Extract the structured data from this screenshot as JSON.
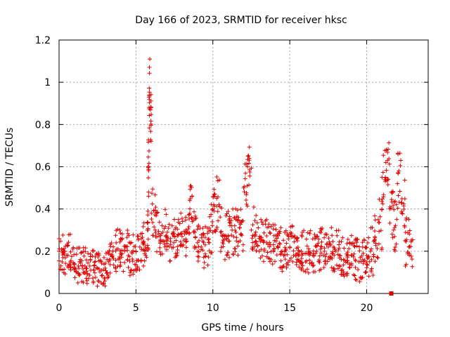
{
  "chart_data": {
    "type": "scatter",
    "title": "Day 166 of 2023, SRMTID for receiver hksc",
    "xlabel": "GPS time / hours",
    "ylabel": "SRMTID / TECUs",
    "xlim": [
      0,
      24
    ],
    "ylim": [
      0,
      1.2
    ],
    "x_ticks": [
      0,
      5,
      10,
      15,
      20
    ],
    "x_tick_labels": [
      "0",
      "5",
      "10",
      "15",
      "20"
    ],
    "y_ticks": [
      0,
      0.2,
      0.4,
      0.6,
      0.8,
      1.0,
      1.2
    ],
    "y_tick_labels": [
      "0",
      "0.2",
      "0.4",
      "0.6",
      "0.8",
      "1",
      "1.2"
    ],
    "grid": true,
    "marker": "plus",
    "color": "#e00000",
    "series": [
      {
        "name": "SRMTID",
        "x": [
          0.0,
          0.25,
          0.5,
          0.75,
          1.0,
          1.25,
          1.5,
          1.75,
          2.0,
          2.25,
          2.5,
          2.75,
          3.0,
          3.25,
          3.5,
          3.75,
          4.0,
          4.25,
          4.5,
          4.75,
          5.0,
          5.25,
          5.5,
          5.75,
          5.8,
          5.85,
          5.9,
          5.95,
          6.0,
          6.25,
          6.5,
          6.75,
          7.0,
          7.25,
          7.5,
          7.75,
          8.0,
          8.25,
          8.5,
          8.75,
          9.0,
          9.25,
          9.5,
          9.75,
          10.0,
          10.25,
          10.5,
          10.75,
          11.0,
          11.25,
          11.5,
          11.75,
          12.0,
          12.25,
          12.5,
          12.75,
          13.0,
          13.25,
          13.5,
          13.75,
          14.0,
          14.25,
          14.5,
          14.75,
          15.0,
          15.25,
          15.5,
          15.75,
          16.0,
          16.25,
          16.5,
          16.75,
          17.0,
          17.25,
          17.5,
          17.75,
          18.0,
          18.25,
          18.5,
          18.75,
          19.0,
          19.25,
          19.5,
          19.75,
          20.0,
          20.25,
          20.5,
          20.75,
          21.0,
          21.25,
          21.5,
          21.75,
          22.0,
          22.25,
          22.5,
          22.75
        ],
        "y": [
          0.2,
          0.17,
          0.18,
          0.15,
          0.14,
          0.13,
          0.13,
          0.12,
          0.13,
          0.11,
          0.12,
          0.11,
          0.12,
          0.16,
          0.2,
          0.21,
          0.19,
          0.2,
          0.18,
          0.19,
          0.2,
          0.22,
          0.24,
          0.3,
          0.6,
          0.93,
          1.11,
          0.87,
          0.38,
          0.3,
          0.27,
          0.29,
          0.25,
          0.26,
          0.27,
          0.28,
          0.27,
          0.3,
          0.44,
          0.29,
          0.24,
          0.22,
          0.23,
          0.31,
          0.4,
          0.45,
          0.29,
          0.27,
          0.27,
          0.3,
          0.29,
          0.31,
          0.5,
          0.6,
          0.3,
          0.28,
          0.26,
          0.25,
          0.24,
          0.23,
          0.25,
          0.22,
          0.2,
          0.21,
          0.22,
          0.18,
          0.19,
          0.2,
          0.19,
          0.2,
          0.18,
          0.2,
          0.21,
          0.2,
          0.22,
          0.19,
          0.2,
          0.18,
          0.16,
          0.17,
          0.18,
          0.16,
          0.15,
          0.16,
          0.18,
          0.2,
          0.25,
          0.35,
          0.55,
          0.62,
          0.4,
          0.3,
          0.52,
          0.43,
          0.25,
          0.22
        ],
        "spread": [
          0.1,
          0.1,
          0.1,
          0.09,
          0.09,
          0.09,
          0.09,
          0.08,
          0.08,
          0.08,
          0.08,
          0.08,
          0.08,
          0.1,
          0.1,
          0.1,
          0.1,
          0.1,
          0.1,
          0.1,
          0.1,
          0.1,
          0.1,
          0.1,
          0.15,
          0.15,
          0.0,
          0.15,
          0.12,
          0.12,
          0.1,
          0.12,
          0.1,
          0.1,
          0.1,
          0.12,
          0.1,
          0.1,
          0.1,
          0.12,
          0.1,
          0.1,
          0.1,
          0.12,
          0.15,
          0.15,
          0.12,
          0.12,
          0.12,
          0.12,
          0.12,
          0.12,
          0.12,
          0.1,
          0.12,
          0.1,
          0.1,
          0.1,
          0.1,
          0.1,
          0.1,
          0.1,
          0.1,
          0.1,
          0.1,
          0.1,
          0.1,
          0.1,
          0.1,
          0.1,
          0.1,
          0.1,
          0.1,
          0.1,
          0.1,
          0.1,
          0.1,
          0.1,
          0.1,
          0.1,
          0.1,
          0.1,
          0.1,
          0.1,
          0.1,
          0.12,
          0.12,
          0.15,
          0.15,
          0.12,
          0.15,
          0.15,
          0.15,
          0.12,
          0.12,
          0.1
        ]
      }
    ],
    "outlier": {
      "x": 21.6,
      "y": 0.0,
      "marker": "square"
    }
  }
}
